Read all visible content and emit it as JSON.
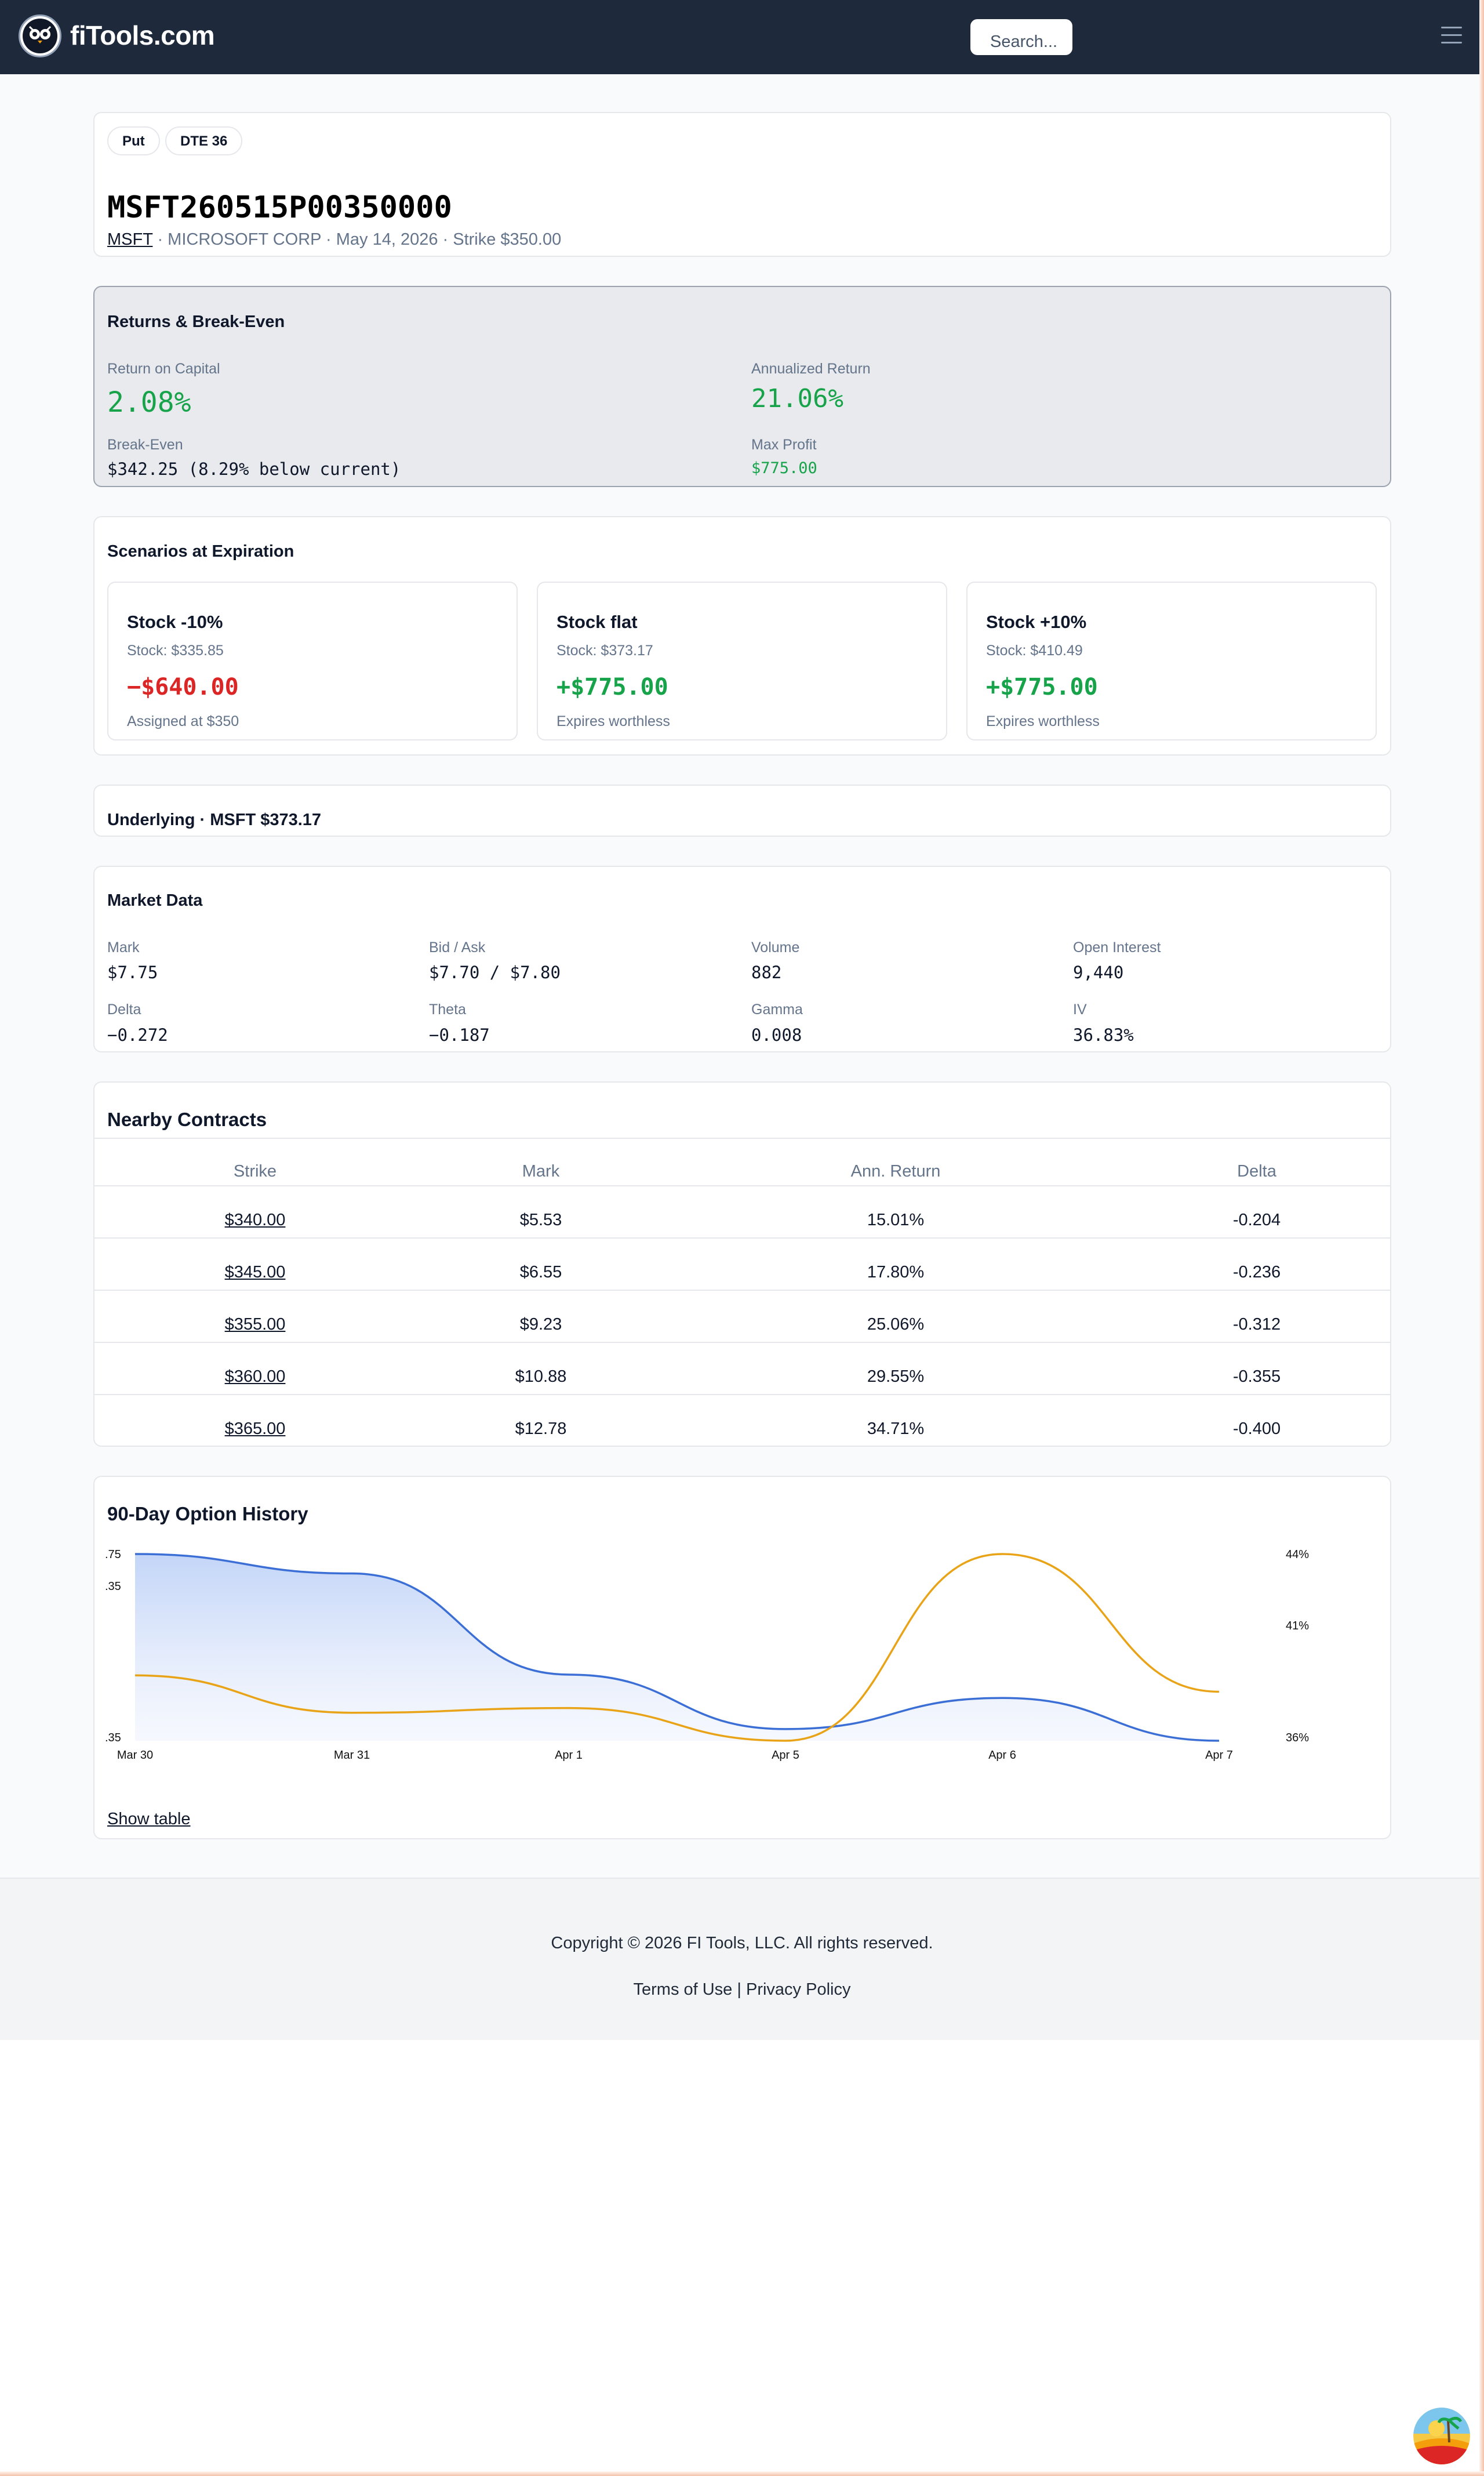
{
  "header": {
    "brand": "fiTools.com",
    "search_placeholder": "Search..."
  },
  "contract": {
    "tags": [
      "Put",
      "DTE 36"
    ],
    "symbol": "MSFT260515P00350000",
    "ticker": "MSFT",
    "details": " · MICROSOFT CORP · May 14, 2026 · Strike $350.00"
  },
  "returns": {
    "title": "Returns & Break-Even",
    "roc_label": "Return on Capital",
    "roc_value": "2.08%",
    "annualized_label": "Annualized Return",
    "annualized_value": "21.06%",
    "breakeven_label": "Break-Even",
    "breakeven_value": "$342.25 (8.29% below current)",
    "maxprofit_label": "Max Profit",
    "maxprofit_value": "$775.00"
  },
  "scenarios": {
    "title": "Scenarios at Expiration",
    "items": [
      {
        "title": "Stock -10%",
        "stock": "Stock: $335.85",
        "pl": "−$640.00",
        "note": "Assigned at $350",
        "color": "#dc2626"
      },
      {
        "title": "Stock flat",
        "stock": "Stock: $373.17",
        "pl": "+$775.00",
        "note": "Expires worthless",
        "color": "#16a34a"
      },
      {
        "title": "Stock +10%",
        "stock": "Stock: $410.49",
        "pl": "+$775.00",
        "note": "Expires worthless",
        "color": "#16a34a"
      }
    ]
  },
  "underlying": {
    "title": "Underlying · MSFT $373.17"
  },
  "market": {
    "title": "Market Data",
    "fields": [
      {
        "label": "Mark",
        "value": "$7.75"
      },
      {
        "label": "Bid / Ask",
        "value": "$7.70 / $7.80"
      },
      {
        "label": "Volume",
        "value": "882"
      },
      {
        "label": "Open Interest",
        "value": "9,440"
      },
      {
        "label": "Delta",
        "value": "−0.272"
      },
      {
        "label": "Theta",
        "value": "−0.187"
      },
      {
        "label": "Gamma",
        "value": "0.008"
      },
      {
        "label": "IV",
        "value": "36.83%"
      }
    ]
  },
  "nearby": {
    "title": "Nearby Contracts",
    "columns": [
      "Strike",
      "Mark",
      "Ann. Return",
      "Delta"
    ],
    "rows": [
      [
        "$340.00",
        "$5.53",
        "15.01%",
        "-0.204"
      ],
      [
        "$345.00",
        "$6.55",
        "17.80%",
        "-0.236"
      ],
      [
        "$355.00",
        "$9.23",
        "25.06%",
        "-0.312"
      ],
      [
        "$360.00",
        "$10.88",
        "29.55%",
        "-0.355"
      ],
      [
        "$365.00",
        "$12.78",
        "34.71%",
        "-0.400"
      ]
    ]
  },
  "history": {
    "title": "90-Day Option History",
    "show_table": "Show table",
    "left_ticks": [
      ".75",
      ".35",
      ".35"
    ],
    "right_ticks": [
      "44%",
      "41%",
      "36%"
    ]
  },
  "chart_data": {
    "type": "line",
    "x": [
      "Mar 30",
      "Mar 31",
      "Apr 1",
      "Apr 5",
      "Apr 6",
      "Apr 7"
    ],
    "series": [
      {
        "values": [
          9.75,
          9.5,
          8.2,
          7.5,
          7.9,
          7.35
        ],
        "color": "#3b6fd6"
      },
      {
        "values": [
          38.8,
          37.2,
          37.4,
          36.0,
          44.0,
          38.1
        ],
        "color": "#e8a317"
      }
    ],
    "area_fill_series": 0,
    "left_axis_ticks": [
      ".75",
      ".35",
      ".35"
    ],
    "right_axis_ticks": [
      "44%",
      "41%",
      "36%"
    ],
    "grid": false
  },
  "footer": {
    "copyright": "Copyright © 2026 FI Tools, LLC. All rights reserved.",
    "terms": "Terms of Use",
    "separator": " | ",
    "privacy": "Privacy Policy"
  }
}
